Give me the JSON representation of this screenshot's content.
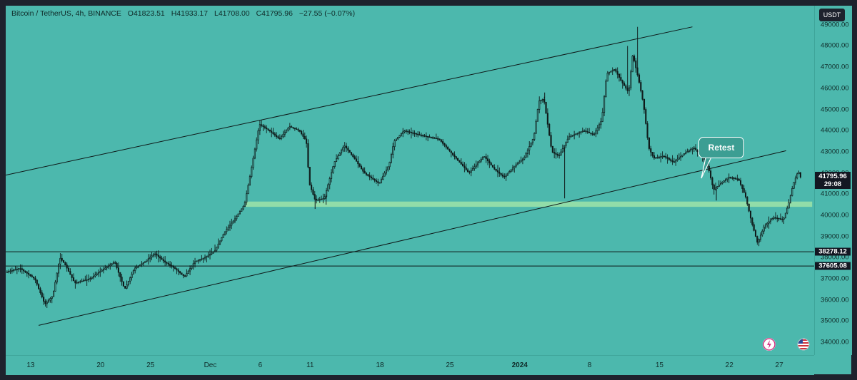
{
  "legend": {
    "symbol": "Bitcoin / TetherUS, 4h, BINANCE",
    "open": "O41823.51",
    "high": "H41933.17",
    "low": "L41708.00",
    "close": "C41795.96",
    "change": "−27.55 (−0.07%)"
  },
  "currency_button": "USDT",
  "annotation": "Retest",
  "price_labels": {
    "last_price": "41795.96",
    "countdown": "29:08",
    "level_upper": "38278.12",
    "level_lower": "37605.08"
  },
  "colors": {
    "background": "#4cb8ad",
    "candle": "#0f1a1a",
    "zone": "#9ee3a8",
    "frame": "#1e222d"
  },
  "icons": [
    "lightning-icon",
    "us-flag-icon"
  ],
  "chart_data": {
    "type": "candlestick",
    "title": "",
    "xlabel": "",
    "ylabel": "",
    "y_ticks": [
      34000,
      35000,
      36000,
      37000,
      38000,
      39000,
      40000,
      41000,
      42000,
      43000,
      44000,
      45000,
      46000,
      47000,
      48000,
      49000
    ],
    "y_tick_labels": [
      "34000.00",
      "35000.00",
      "36000.00",
      "37000.00",
      "38000.00",
      "39000.00",
      "40000.00",
      "41000.00",
      "42000.00",
      "43000.00",
      "44000.00",
      "45000.00",
      "46000.00",
      "47000.00",
      "48000.00",
      "49000.00"
    ],
    "ylim": [
      33400,
      49900
    ],
    "x_ticks": [
      {
        "label": "13",
        "day": 0
      },
      {
        "label": "20",
        "day": 7
      },
      {
        "label": "25",
        "day": 12
      },
      {
        "label": "Dec",
        "day": 18
      },
      {
        "label": "6",
        "day": 23
      },
      {
        "label": "11",
        "day": 28
      },
      {
        "label": "18",
        "day": 35
      },
      {
        "label": "25",
        "day": 42
      },
      {
        "label": "2024",
        "day": 49,
        "bold": true
      },
      {
        "label": "8",
        "day": 56
      },
      {
        "label": "15",
        "day": 63
      },
      {
        "label": "22",
        "day": 70
      },
      {
        "label": "27",
        "day": 75
      }
    ],
    "xlim_days": [
      -2.5,
      78.5
    ],
    "path": [
      [
        -2.5,
        37300
      ],
      [
        -1,
        37500
      ],
      [
        0.5,
        37000
      ],
      [
        1.5,
        35800
      ],
      [
        2.3,
        36200
      ],
      [
        3,
        38000
      ],
      [
        3.5,
        37700
      ],
      [
        4.5,
        36800
      ],
      [
        6,
        37000
      ],
      [
        7.5,
        37500
      ],
      [
        8.5,
        37800
      ],
      [
        9.5,
        36500
      ],
      [
        10.5,
        37500
      ],
      [
        11.5,
        37800
      ],
      [
        12.5,
        38200
      ],
      [
        13.5,
        37800
      ],
      [
        14.5,
        37500
      ],
      [
        15.5,
        37100
      ],
      [
        16.5,
        37800
      ],
      [
        17.5,
        38000
      ],
      [
        18.5,
        38300
      ],
      [
        19.5,
        39200
      ],
      [
        20.5,
        39800
      ],
      [
        21.5,
        40500
      ],
      [
        22,
        41700
      ],
      [
        22.5,
        43000
      ],
      [
        23,
        44300
      ],
      [
        24,
        44000
      ],
      [
        25,
        43600
      ],
      [
        26,
        44200
      ],
      [
        27,
        44000
      ],
      [
        27.7,
        43500
      ],
      [
        28,
        41500
      ],
      [
        28.6,
        40700
      ],
      [
        29.5,
        40800
      ],
      [
        30.5,
        42500
      ],
      [
        31.5,
        43300
      ],
      [
        32.5,
        42700
      ],
      [
        33.5,
        42000
      ],
      [
        35,
        41500
      ],
      [
        36,
        42400
      ],
      [
        36.5,
        43500
      ],
      [
        37.5,
        44000
      ],
      [
        39,
        43800
      ],
      [
        41,
        43600
      ],
      [
        42.5,
        42800
      ],
      [
        44,
        42000
      ],
      [
        45.5,
        42800
      ],
      [
        46.5,
        42200
      ],
      [
        47.5,
        41800
      ],
      [
        48.5,
        42300
      ],
      [
        49.5,
        42700
      ],
      [
        50.5,
        43700
      ],
      [
        51,
        45400
      ],
      [
        51.5,
        45500
      ],
      [
        52.3,
        43000
      ],
      [
        53,
        42800
      ],
      [
        54,
        43700
      ],
      [
        55.5,
        44000
      ],
      [
        56.5,
        43800
      ],
      [
        57.3,
        44500
      ],
      [
        57.8,
        46700
      ],
      [
        58.6,
        46900
      ],
      [
        59.3,
        46300
      ],
      [
        60,
        45800
      ],
      [
        60.4,
        47600
      ],
      [
        61,
        46400
      ],
      [
        61.5,
        45200
      ],
      [
        62,
        43200
      ],
      [
        62.5,
        42700
      ],
      [
        63.5,
        42800
      ],
      [
        64.5,
        42500
      ],
      [
        65.5,
        42900
      ],
      [
        66.5,
        43200
      ],
      [
        67.5,
        42700
      ],
      [
        68,
        42200
      ],
      [
        68.5,
        41200
      ],
      [
        69.2,
        41500
      ],
      [
        70,
        41800
      ],
      [
        71,
        41700
      ],
      [
        71.7,
        40900
      ],
      [
        72.3,
        39700
      ],
      [
        72.9,
        38700
      ],
      [
        73.6,
        39500
      ],
      [
        74.5,
        39900
      ],
      [
        75.5,
        39800
      ],
      [
        76,
        40500
      ],
      [
        76.5,
        41500
      ],
      [
        77,
        42100
      ],
      [
        77.2,
        41800
      ]
    ],
    "spikes": [
      {
        "day": 28.5,
        "low": 40300
      },
      {
        "day": 29.6,
        "low": 40500
      },
      {
        "day": 51.5,
        "high": 45800
      },
      {
        "day": 53.5,
        "low": 40800
      },
      {
        "day": 59.8,
        "high": 48000
      },
      {
        "day": 60.8,
        "high": 48900
      },
      {
        "day": 68.7,
        "low": 40700
      }
    ],
    "annotations": {
      "channel_upper": [
        [
          -2.5,
          41900
        ],
        [
          66.3,
          48900
        ]
      ],
      "channel_lower": [
        [
          0.8,
          34800
        ],
        [
          75.7,
          43050
        ]
      ],
      "horizontal_levels": [
        38278.12,
        37605.08
      ],
      "zone": {
        "day_from": 21.5,
        "day_to": 78.3,
        "low": 40400,
        "high": 40650
      },
      "last_price": 41795.96
    }
  }
}
